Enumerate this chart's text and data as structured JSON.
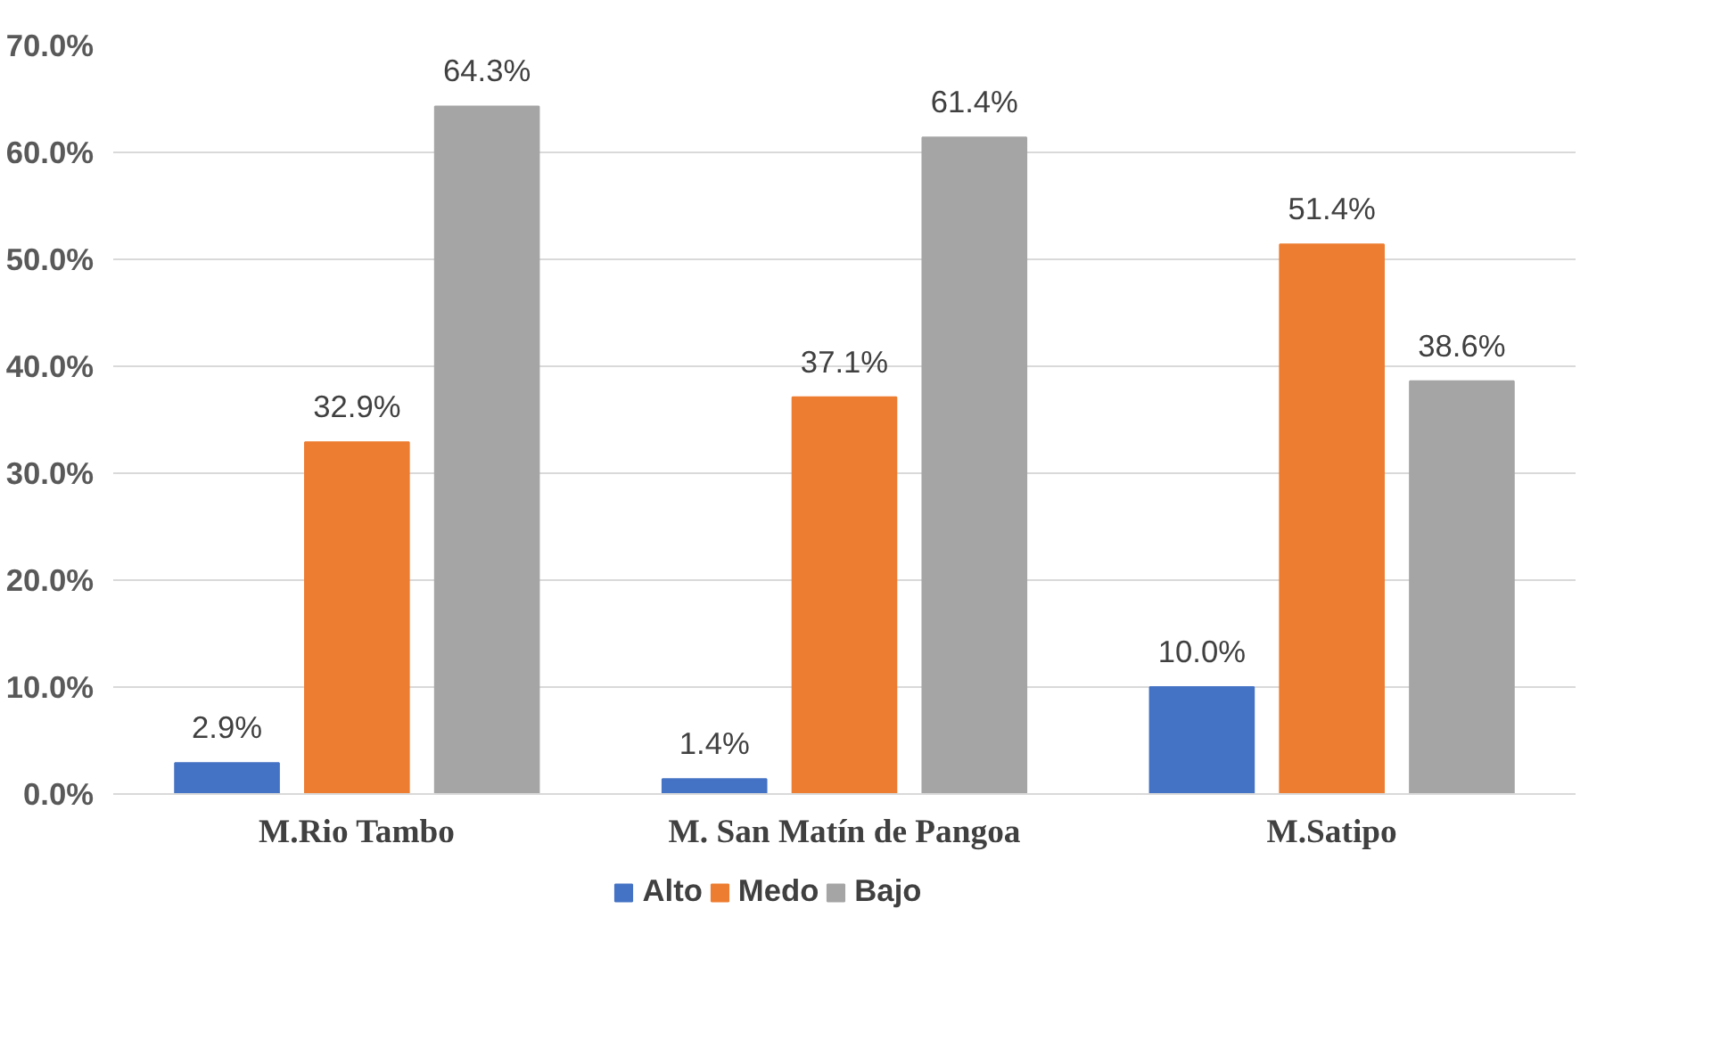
{
  "chart_data": {
    "type": "bar",
    "categories": [
      "M.Rio Tambo",
      "M. San Matín de Pangoa",
      "M.Satipo"
    ],
    "series": [
      {
        "name": "Alto",
        "color": "#4472c4",
        "values": [
          2.9,
          1.4,
          10.0
        ],
        "value_labels": [
          "2.9%",
          "1.4%",
          "10.0%"
        ]
      },
      {
        "name": "Medo",
        "color": "#ed7d31",
        "values": [
          32.9,
          37.1,
          51.4
        ],
        "value_labels": [
          "32.9%",
          "37.1%",
          "51.4%"
        ]
      },
      {
        "name": "Bajo",
        "color": "#a5a5a5",
        "values": [
          64.3,
          61.4,
          38.6
        ],
        "value_labels": [
          "64.3%",
          "61.4%",
          "38.6%"
        ]
      }
    ],
    "ylim": [
      0,
      70
    ],
    "yticks": [
      {
        "value": 0,
        "label": "0.0%"
      },
      {
        "value": 10,
        "label": "10.0%"
      },
      {
        "value": 20,
        "label": "20.0%"
      },
      {
        "value": 30,
        "label": "30.0%"
      },
      {
        "value": 40,
        "label": "40.0%"
      },
      {
        "value": 50,
        "label": "50.0%"
      },
      {
        "value": 60,
        "label": "60.0%"
      },
      {
        "value": 70,
        "label": "70.0%"
      }
    ],
    "grid": "y",
    "legend": "bottom"
  }
}
